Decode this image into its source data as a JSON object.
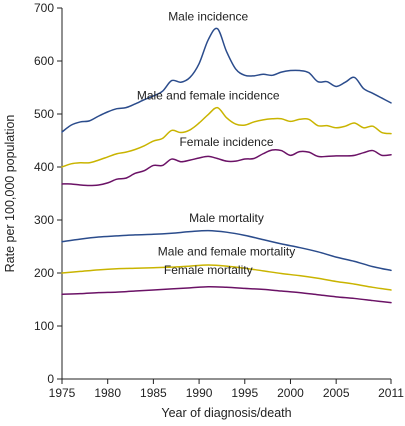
{
  "chart_data": {
    "type": "line",
    "title": "",
    "xlabel": "Year of diagnosis/death",
    "ylabel": "Rate per 100,000 population",
    "xlim": [
      1975,
      2011
    ],
    "ylim": [
      0,
      700
    ],
    "xticks": [
      1975,
      1980,
      1985,
      1990,
      1995,
      2000,
      2005,
      2011
    ],
    "yticks": [
      0,
      100,
      200,
      300,
      400,
      500,
      600,
      700
    ],
    "grid": false,
    "legend": "none (series labeled directly on plot)",
    "series": [
      {
        "name": "Male incidence",
        "color": "#2b4c8c",
        "label_at": [
          1991,
          661
        ],
        "points": [
          [
            1975,
            466
          ],
          [
            1976,
            479
          ],
          [
            1977,
            485
          ],
          [
            1978,
            487
          ],
          [
            1979,
            496
          ],
          [
            1980,
            504
          ],
          [
            1981,
            510
          ],
          [
            1982,
            512
          ],
          [
            1983,
            519
          ],
          [
            1984,
            527
          ],
          [
            1985,
            534
          ],
          [
            1986,
            543
          ],
          [
            1987,
            563
          ],
          [
            1988,
            560
          ],
          [
            1989,
            569
          ],
          [
            1990,
            595
          ],
          [
            1991,
            640
          ],
          [
            1992,
            661
          ],
          [
            1993,
            618
          ],
          [
            1994,
            585
          ],
          [
            1995,
            573
          ],
          [
            1996,
            572
          ],
          [
            1997,
            575
          ],
          [
            1998,
            573
          ],
          [
            1999,
            579
          ],
          [
            2000,
            582
          ],
          [
            2001,
            582
          ],
          [
            2002,
            578
          ],
          [
            2003,
            561
          ],
          [
            2004,
            561
          ],
          [
            2005,
            552
          ],
          [
            2006,
            560
          ],
          [
            2007,
            569
          ],
          [
            2008,
            548
          ],
          [
            2009,
            539
          ],
          [
            2010,
            530
          ],
          [
            2011,
            521
          ]
        ]
      },
      {
        "name": "Male and female incidence",
        "color": "#c9b400",
        "label_at": [
          1991,
          512
        ],
        "points": [
          [
            1975,
            400
          ],
          [
            1976,
            406
          ],
          [
            1977,
            408
          ],
          [
            1978,
            408
          ],
          [
            1979,
            413
          ],
          [
            1980,
            419
          ],
          [
            1981,
            425
          ],
          [
            1982,
            428
          ],
          [
            1983,
            433
          ],
          [
            1984,
            440
          ],
          [
            1985,
            449
          ],
          [
            1986,
            454
          ],
          [
            1987,
            469
          ],
          [
            1988,
            465
          ],
          [
            1989,
            470
          ],
          [
            1990,
            483
          ],
          [
            1991,
            499
          ],
          [
            1992,
            512
          ],
          [
            1993,
            493
          ],
          [
            1994,
            481
          ],
          [
            1995,
            479
          ],
          [
            1996,
            485
          ],
          [
            1997,
            489
          ],
          [
            1998,
            491
          ],
          [
            1999,
            491
          ],
          [
            2000,
            486
          ],
          [
            2001,
            490
          ],
          [
            2002,
            490
          ],
          [
            2003,
            478
          ],
          [
            2004,
            478
          ],
          [
            2005,
            474
          ],
          [
            2006,
            477
          ],
          [
            2007,
            483
          ],
          [
            2008,
            474
          ],
          [
            2009,
            477
          ],
          [
            2010,
            465
          ],
          [
            2011,
            463
          ]
        ]
      },
      {
        "name": "Female incidence",
        "color": "#6b1266",
        "label_at": [
          1993,
          425
        ],
        "points": [
          [
            1975,
            368
          ],
          [
            1976,
            368
          ],
          [
            1977,
            366
          ],
          [
            1978,
            365
          ],
          [
            1979,
            366
          ],
          [
            1980,
            370
          ],
          [
            1981,
            377
          ],
          [
            1982,
            379
          ],
          [
            1983,
            388
          ],
          [
            1984,
            393
          ],
          [
            1985,
            403
          ],
          [
            1986,
            403
          ],
          [
            1987,
            415
          ],
          [
            1988,
            410
          ],
          [
            1989,
            413
          ],
          [
            1990,
            417
          ],
          [
            1991,
            420
          ],
          [
            1992,
            416
          ],
          [
            1993,
            411
          ],
          [
            1994,
            411
          ],
          [
            1995,
            415
          ],
          [
            1996,
            416
          ],
          [
            1997,
            425
          ],
          [
            1998,
            432
          ],
          [
            1999,
            431
          ],
          [
            2000,
            422
          ],
          [
            2001,
            429
          ],
          [
            2002,
            428
          ],
          [
            2003,
            420
          ],
          [
            2004,
            420
          ],
          [
            2005,
            421
          ],
          [
            2006,
            421
          ],
          [
            2007,
            422
          ],
          [
            2008,
            427
          ],
          [
            2009,
            431
          ],
          [
            2010,
            422
          ],
          [
            2011,
            423
          ]
        ]
      },
      {
        "name": "Male mortality",
        "color": "#2b4c8c",
        "label_at": [
          1993,
          281
        ],
        "points": [
          [
            1975,
            259
          ],
          [
            1977,
            264
          ],
          [
            1979,
            268
          ],
          [
            1981,
            270
          ],
          [
            1983,
            272
          ],
          [
            1985,
            273
          ],
          [
            1987,
            275
          ],
          [
            1989,
            278
          ],
          [
            1991,
            280
          ],
          [
            1993,
            277
          ],
          [
            1995,
            271
          ],
          [
            1997,
            263
          ],
          [
            1999,
            255
          ],
          [
            2001,
            248
          ],
          [
            2003,
            240
          ],
          [
            2005,
            230
          ],
          [
            2007,
            222
          ],
          [
            2009,
            212
          ],
          [
            2011,
            205
          ]
        ]
      },
      {
        "name": "Male and female mortality",
        "color": "#c9b400",
        "label_at": [
          1993,
          218
        ],
        "points": [
          [
            1975,
            200
          ],
          [
            1977,
            203
          ],
          [
            1979,
            206
          ],
          [
            1981,
            208
          ],
          [
            1983,
            209
          ],
          [
            1985,
            210
          ],
          [
            1987,
            211
          ],
          [
            1989,
            213
          ],
          [
            1991,
            215
          ],
          [
            1993,
            213
          ],
          [
            1995,
            209
          ],
          [
            1997,
            204
          ],
          [
            1999,
            199
          ],
          [
            2001,
            195
          ],
          [
            2003,
            190
          ],
          [
            2005,
            184
          ],
          [
            2007,
            179
          ],
          [
            2009,
            173
          ],
          [
            2011,
            168
          ]
        ]
      },
      {
        "name": "Female mortality",
        "color": "#6b1266",
        "label_at": [
          1991,
          183
        ],
        "points": [
          [
            1975,
            160
          ],
          [
            1977,
            161
          ],
          [
            1979,
            163
          ],
          [
            1981,
            164
          ],
          [
            1983,
            166
          ],
          [
            1985,
            168
          ],
          [
            1987,
            170
          ],
          [
            1989,
            172
          ],
          [
            1991,
            174
          ],
          [
            1993,
            173
          ],
          [
            1995,
            171
          ],
          [
            1997,
            169
          ],
          [
            1999,
            166
          ],
          [
            2001,
            163
          ],
          [
            2003,
            159
          ],
          [
            2005,
            155
          ],
          [
            2007,
            152
          ],
          [
            2009,
            148
          ],
          [
            2011,
            144
          ]
        ]
      }
    ]
  }
}
